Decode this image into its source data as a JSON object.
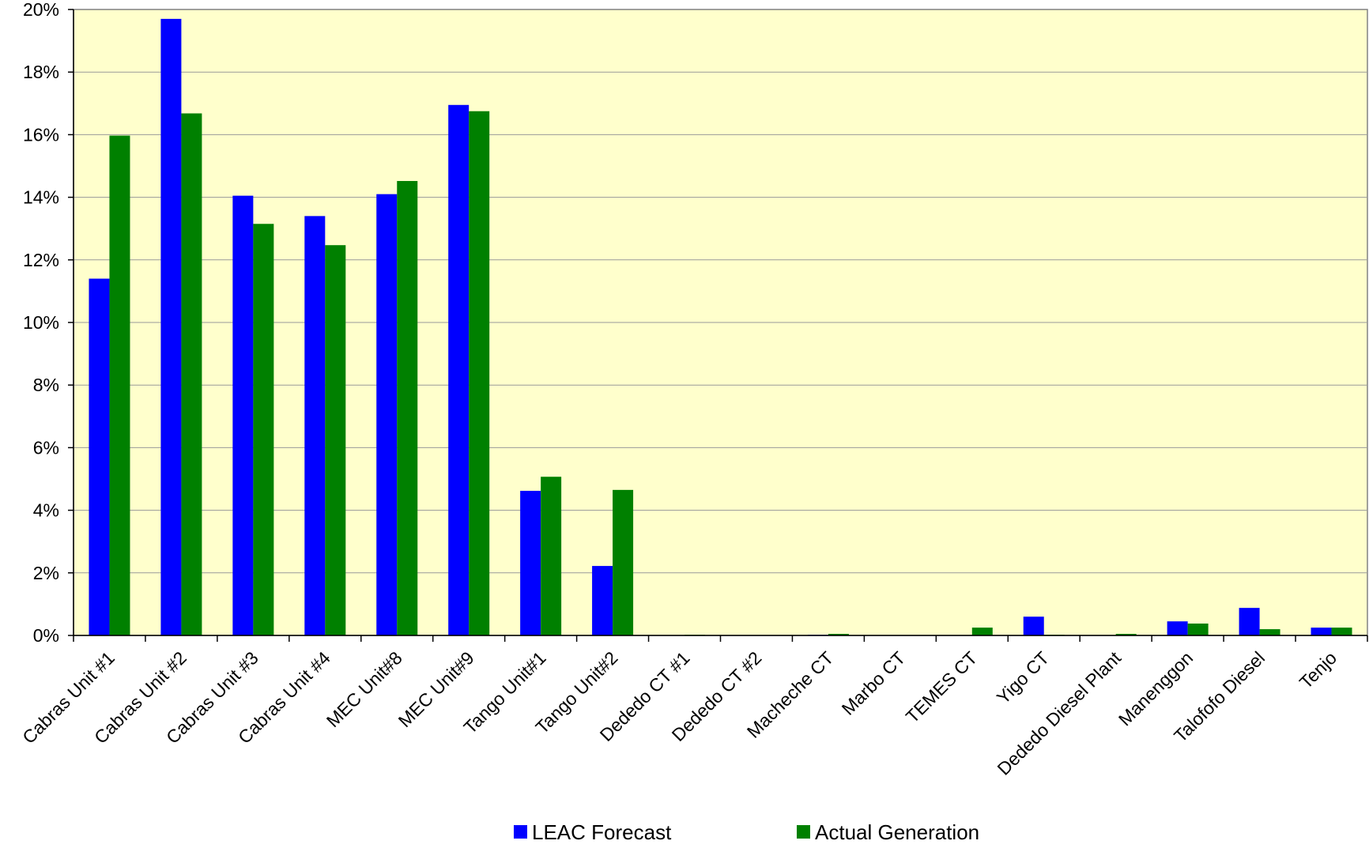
{
  "chart_data": {
    "type": "bar",
    "categories": [
      "Cabras Unit #1",
      "Cabras Unit #2",
      "Cabras Unit #3",
      "Cabras Unit #4",
      "MEC Unit#8",
      "MEC Unit#9",
      "Tango Unit#1",
      "Tango Unit#2",
      "Dededo CT #1",
      "Dededo CT #2",
      "Macheche CT",
      "Marbo CT",
      "TEMES CT",
      "Yigo CT",
      "Dededo Diesel Plant",
      "Manenggon",
      "Talofofo Diesel",
      "Tenjo"
    ],
    "series": [
      {
        "name": "LEAC Forecast",
        "color": "#0000ff",
        "values": [
          11.4,
          19.7,
          14.05,
          13.4,
          14.1,
          16.95,
          4.62,
          2.22,
          0,
          0,
          0.02,
          0,
          0,
          0.6,
          0,
          0.45,
          0.88,
          0.25
        ]
      },
      {
        "name": "Actual Generation",
        "color": "#008000",
        "values": [
          15.97,
          16.68,
          13.15,
          12.47,
          14.52,
          16.75,
          5.07,
          4.65,
          0.02,
          0,
          0.05,
          0,
          0.25,
          0.02,
          0.05,
          0.38,
          0.2,
          0.25
        ]
      }
    ],
    "yticks": [
      "0%",
      "2%",
      "4%",
      "6%",
      "8%",
      "10%",
      "12%",
      "14%",
      "16%",
      "18%",
      "20%"
    ],
    "ylim": [
      0,
      20
    ],
    "grid": true,
    "plot_background": "#ffffcc",
    "legend_position": "bottom"
  }
}
